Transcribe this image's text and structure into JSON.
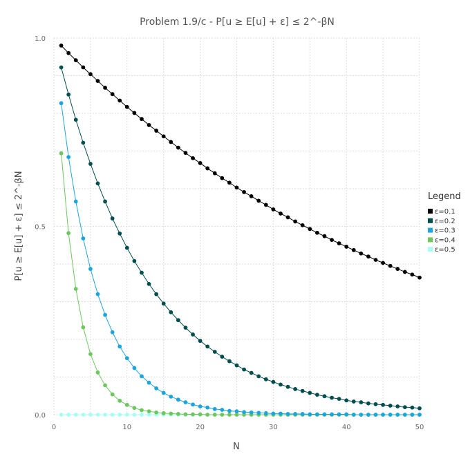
{
  "chart_data": {
    "type": "line",
    "title": "Problem 1.9/c - P[u ≥ E[u] + ε] ≤ 2^-βN",
    "xlabel": "N",
    "ylabel": "P[u ≥ E[u] + ε] ≤ 2^-βN",
    "xlim": [
      0,
      50
    ],
    "ylim": [
      0,
      1
    ],
    "x_ticks": [
      0,
      10,
      20,
      30,
      40,
      50
    ],
    "y_ticks": [
      0,
      0.5,
      1
    ],
    "y_tick_labels": [
      "0.0",
      "0.5",
      "1.0"
    ],
    "grid": true,
    "legend": {
      "title": "Legend",
      "placement": "right"
    },
    "x": [
      1,
      2,
      3,
      4,
      5,
      6,
      7,
      8,
      9,
      10,
      11,
      12,
      13,
      14,
      15,
      16,
      17,
      18,
      19,
      20,
      21,
      22,
      23,
      24,
      25,
      26,
      27,
      28,
      29,
      30,
      31,
      32,
      33,
      34,
      35,
      36,
      37,
      38,
      39,
      40,
      41,
      42,
      43,
      44,
      45,
      46,
      47,
      48,
      49,
      50
    ],
    "series": [
      {
        "name": "ε=0.1",
        "color": "#000000",
        "values": [
          0.98,
          0.96,
          0.941,
          0.922,
          0.904,
          0.886,
          0.868,
          0.851,
          0.834,
          0.817,
          0.801,
          0.785,
          0.769,
          0.754,
          0.739,
          0.724,
          0.709,
          0.695,
          0.681,
          0.668,
          0.654,
          0.641,
          0.628,
          0.616,
          0.603,
          0.591,
          0.58,
          0.568,
          0.557,
          0.545,
          0.534,
          0.524,
          0.513,
          0.503,
          0.493,
          0.483,
          0.474,
          0.464,
          0.455,
          0.446,
          0.437,
          0.428,
          0.42,
          0.411,
          0.403,
          0.395,
          0.387,
          0.379,
          0.372,
          0.364
        ]
      },
      {
        "name": "ε=0.2",
        "color": "#004d4d",
        "values": [
          0.922,
          0.85,
          0.783,
          0.722,
          0.666,
          0.614,
          0.566,
          0.521,
          0.481,
          0.443,
          0.408,
          0.377,
          0.347,
          0.32,
          0.295,
          0.272,
          0.251,
          0.231,
          0.213,
          0.196,
          0.181,
          0.167,
          0.154,
          0.142,
          0.131,
          0.12,
          0.111,
          0.102,
          0.094,
          0.087,
          0.08,
          0.074,
          0.068,
          0.063,
          0.058,
          0.053,
          0.049,
          0.045,
          0.042,
          0.038,
          0.035,
          0.033,
          0.03,
          0.028,
          0.026,
          0.024,
          0.022,
          0.02,
          0.019,
          0.017
        ]
      },
      {
        "name": "ε=0.3",
        "color": "#1ba5dc",
        "values": [
          0.827,
          0.684,
          0.566,
          0.468,
          0.387,
          0.32,
          0.265,
          0.219,
          0.181,
          0.15,
          0.124,
          0.102,
          0.085,
          0.07,
          0.058,
          0.048,
          0.04,
          0.033,
          0.027,
          0.022,
          0.019,
          0.015,
          0.013,
          0.01,
          0.009,
          0.007,
          0.006,
          0.005,
          0.004,
          0.003,
          0.003,
          0.002,
          0.002,
          0.002,
          0.001,
          0.001,
          0.001,
          0.001,
          0.001,
          0.001,
          0.0,
          0.0,
          0.0,
          0.0,
          0.0,
          0.0,
          0.0,
          0.0,
          0.0,
          0.0
        ]
      },
      {
        "name": "ε=0.4",
        "color": "#6cc75c",
        "values": [
          0.694,
          0.482,
          0.334,
          0.232,
          0.161,
          0.112,
          0.078,
          0.054,
          0.037,
          0.026,
          0.018,
          0.012,
          0.009,
          0.006,
          0.004,
          0.003,
          0.002,
          0.001,
          0.001,
          0.001,
          0.0,
          0.0,
          0.0,
          0.0,
          0.0,
          0.0,
          0.0,
          0.0,
          0.0,
          0.0,
          0.0,
          0.0,
          0.0,
          0.0,
          0.0,
          0.0,
          0.0,
          0.0,
          0.0,
          0.0,
          0.0,
          0.0,
          0.0,
          0.0,
          0.0,
          0.0,
          0.0,
          0.0,
          0.0,
          0.0
        ]
      },
      {
        "name": "ε=0.5",
        "color": "#a6fff0",
        "values": [
          0,
          0,
          0,
          0,
          0,
          0,
          0,
          0,
          0,
          0,
          0,
          0,
          0,
          0,
          0,
          0,
          0,
          0,
          0,
          0,
          0,
          0,
          0,
          0,
          0,
          0,
          0,
          0,
          0,
          0,
          0,
          0,
          0,
          0,
          0,
          0,
          0,
          0,
          0,
          0,
          0,
          0,
          0,
          0,
          0,
          0,
          0,
          0,
          0,
          0
        ]
      }
    ]
  }
}
